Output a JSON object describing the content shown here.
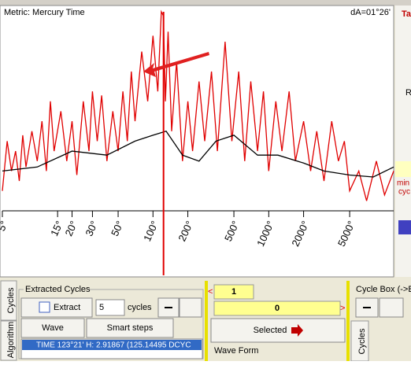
{
  "window": {
    "metric_label": "Metric: Mercury Time",
    "da_label": "dA=01°26'",
    "side_labels": [
      "Ta",
      "R",
      "min",
      "cyc"
    ]
  },
  "chart_data": {
    "type": "line",
    "x_scale": "log",
    "xlim": [
      5,
      12000
    ],
    "ylim": [
      0,
      100
    ],
    "xticks": [
      {
        "value": 5,
        "label": "5°"
      },
      {
        "value": 15,
        "label": "15°"
      },
      {
        "value": 20,
        "label": "20°"
      },
      {
        "value": 30,
        "label": "30°"
      },
      {
        "value": 50,
        "label": "50°"
      },
      {
        "value": 100,
        "label": "100°"
      },
      {
        "value": 200,
        "label": "200°"
      },
      {
        "value": 500,
        "label": "500°"
      },
      {
        "value": 1000,
        "label": "1000°"
      },
      {
        "value": 2000,
        "label": "2000°"
      },
      {
        "value": 5000,
        "label": "5000°"
      }
    ],
    "cursor_x": 123.35,
    "cursor_color": "#e00000",
    "series": [
      {
        "color": "#e00000",
        "x": [
          5,
          5.5,
          6,
          6.5,
          7,
          7.5,
          8,
          9,
          10,
          11,
          12,
          13,
          14,
          16,
          18,
          20,
          22,
          25,
          28,
          30,
          33,
          36,
          40,
          45,
          50,
          55,
          60,
          65,
          70,
          80,
          90,
          100,
          110,
          118,
          123,
          128,
          135,
          145,
          160,
          180,
          200,
          220,
          250,
          280,
          320,
          360,
          420,
          480,
          550,
          620,
          700,
          800,
          900,
          1000,
          1150,
          1300,
          1500,
          1700,
          2000,
          2300,
          2600,
          3000,
          3500,
          4000,
          4500,
          5000,
          6000,
          7000,
          8500,
          10000,
          12000
        ],
        "values": [
          10,
          35,
          20,
          30,
          15,
          38,
          22,
          40,
          25,
          45,
          20,
          55,
          30,
          50,
          25,
          45,
          18,
          55,
          30,
          60,
          35,
          58,
          25,
          50,
          30,
          60,
          35,
          70,
          45,
          80,
          55,
          88,
          60,
          100,
          98,
          55,
          90,
          40,
          75,
          25,
          55,
          30,
          65,
          35,
          70,
          30,
          85,
          35,
          70,
          25,
          65,
          30,
          60,
          20,
          55,
          30,
          60,
          25,
          45,
          20,
          40,
          15,
          45,
          25,
          35,
          10,
          20,
          5,
          25,
          8,
          20
        ]
      },
      {
        "color": "#000000",
        "x": [
          5,
          10,
          20,
          40,
          70,
          100,
          130,
          180,
          250,
          350,
          500,
          800,
          1200,
          2000,
          3000,
          5000,
          8000,
          12000
        ],
        "values": [
          20,
          22,
          30,
          28,
          35,
          38,
          40,
          28,
          25,
          35,
          38,
          28,
          28,
          24,
          20,
          18,
          17,
          22
        ]
      }
    ]
  },
  "panel": {
    "tabs": [
      "Cycles",
      "Algorithm"
    ],
    "group": "Extracted Cycles",
    "extract": "Extract",
    "count": "5",
    "count_unit": "cycles",
    "buttons": [
      "Wave",
      "Smart steps"
    ],
    "list_item": "TIME 123°21' H: 2.91867 (125.14495 DCYC",
    "prev": "<",
    "field1": "1",
    "field2": "0",
    "next": ">",
    "selected": "Selected",
    "wave_form": "Wave Form",
    "cycle_box": "Cycle Box (->E",
    "cycles_tab": "Cycles"
  }
}
